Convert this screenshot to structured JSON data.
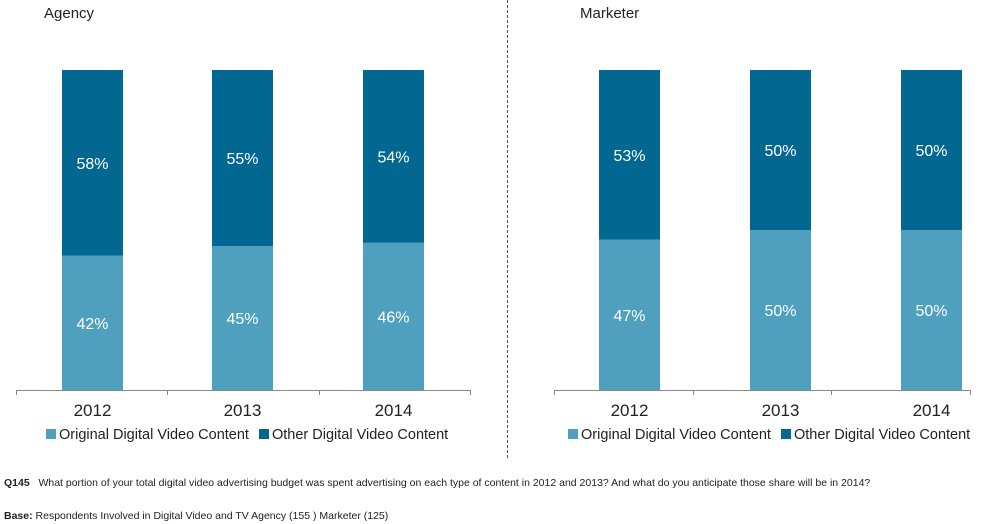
{
  "chart_data": [
    {
      "type": "bar",
      "stacked": true,
      "percent": true,
      "title": "Agency",
      "categories": [
        "2012",
        "2013",
        "2014"
      ],
      "series": [
        {
          "name": "Original Digital Video Content",
          "color": "#4fa0bf",
          "values": [
            42,
            45,
            46
          ],
          "labels": [
            "42%",
            "45%",
            "46%"
          ]
        },
        {
          "name": "Other Digital Video Content",
          "color": "#036891",
          "values": [
            58,
            55,
            54
          ],
          "labels": [
            "58%",
            "55%",
            "54%"
          ]
        }
      ],
      "ylim": [
        0,
        100
      ],
      "grid": false,
      "legend": "bottom"
    },
    {
      "type": "bar",
      "stacked": true,
      "percent": true,
      "title": "Marketer",
      "categories": [
        "2012",
        "2013",
        "2014"
      ],
      "series": [
        {
          "name": "Original Digital Video Content",
          "color": "#4fa0bf",
          "values": [
            47,
            50,
            50
          ],
          "labels": [
            "47%",
            "50%",
            "50%"
          ]
        },
        {
          "name": "Other Digital Video Content",
          "color": "#036891",
          "values": [
            53,
            50,
            50
          ],
          "labels": [
            "53%",
            "50%",
            "50%"
          ]
        }
      ],
      "ylim": [
        0,
        100
      ],
      "grid": false,
      "legend": "bottom"
    }
  ],
  "footnote": {
    "question_id": "Q145",
    "question": "What portion of your total digital video advertising budget was spent advertising on each type of content in 2012 and 2013?  And what do you anticipate those share will be in 2014?",
    "base_label": "Base:",
    "base_text": "Respondents Involved in Digital Video and TV Agency (155 ) Marketer (125)"
  }
}
